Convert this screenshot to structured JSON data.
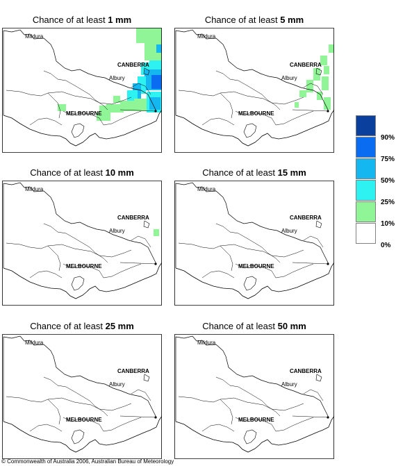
{
  "panels": [
    {
      "prefix": "Chance of at least ",
      "threshold": "1 mm"
    },
    {
      "prefix": "Chance of at least ",
      "threshold": "5 mm"
    },
    {
      "prefix": "Chance of at least ",
      "threshold": "10 mm"
    },
    {
      "prefix": "Chance of at least ",
      "threshold": "15 mm"
    },
    {
      "prefix": "Chance of at least ",
      "threshold": "25 mm"
    },
    {
      "prefix": "Chance of at least ",
      "threshold": "50 mm"
    }
  ],
  "places": {
    "mildura": "Mildura",
    "canberra": "CANBERRA",
    "albury": "Albury",
    "melbourne": "MELBOURNE"
  },
  "legend": [
    {
      "label": "90%",
      "color": "#0a3f9e"
    },
    {
      "label": "75%",
      "color": "#0a6cf0"
    },
    {
      "label": "50%",
      "color": "#14b7ef"
    },
    {
      "label": "25%",
      "color": "#2ef2f2"
    },
    {
      "label": "10%",
      "color": "#90f596"
    },
    {
      "label": "0%",
      "color": "#ffffff"
    }
  ],
  "footer": "© Commonwealth of Australia 2006, Australian Bureau of Meteorology"
}
